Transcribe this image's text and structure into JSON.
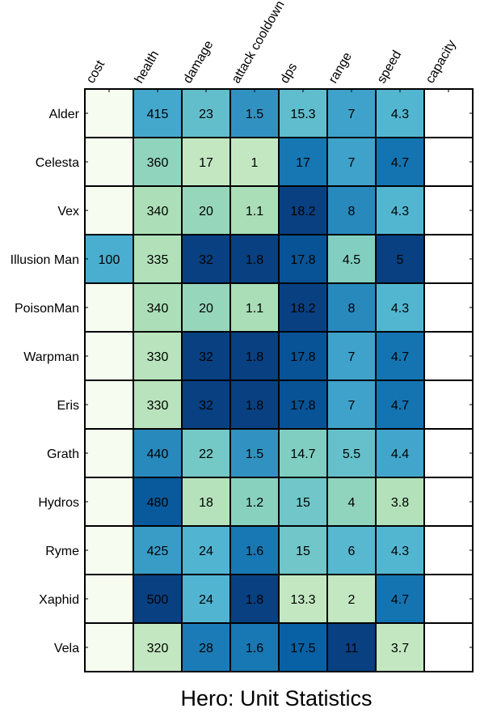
{
  "chart_data": {
    "type": "heatmap",
    "title": "Hero: Unit Statistics",
    "columns": [
      "cost",
      "health",
      "damage",
      "attack cooldown",
      "dps",
      "range",
      "speed",
      "capacity"
    ],
    "rows": [
      "Alder",
      "Celesta",
      "Vex",
      "Illusion Man",
      "PoisonMan",
      "Warpman",
      "Eris",
      "Grath",
      "Hydros",
      "Ryme",
      "Xaphid",
      "Vela"
    ],
    "values": [
      [
        null,
        415,
        23,
        1.5,
        15.3,
        7,
        4.3,
        null
      ],
      [
        null,
        360,
        17,
        1,
        17,
        7,
        4.7,
        null
      ],
      [
        null,
        340,
        20,
        1.1,
        18.2,
        8,
        4.3,
        null
      ],
      [
        100,
        335,
        32,
        1.8,
        17.8,
        4.5,
        5,
        null
      ],
      [
        null,
        340,
        20,
        1.1,
        18.2,
        8,
        4.3,
        null
      ],
      [
        null,
        330,
        32,
        1.8,
        17.8,
        7,
        4.7,
        null
      ],
      [
        null,
        330,
        32,
        1.8,
        17.8,
        7,
        4.7,
        null
      ],
      [
        null,
        440,
        22,
        1.5,
        14.7,
        5.5,
        4.4,
        null
      ],
      [
        null,
        480,
        18,
        1.2,
        15,
        4,
        3.8,
        null
      ],
      [
        null,
        425,
        24,
        1.6,
        15,
        6,
        4.3,
        null
      ],
      [
        null,
        500,
        24,
        1.8,
        13.3,
        2,
        4.7,
        null
      ],
      [
        null,
        320,
        28,
        1.6,
        17.5,
        11,
        3.7,
        null
      ]
    ],
    "colormap": [
      "#f7fcf0",
      "#e0f3db",
      "#ccebc5",
      "#a8ddb5",
      "#7bccc4",
      "#4eb3d3",
      "#2b8cbe",
      "#0868ac",
      "#084081"
    ],
    "empty_cell_color": "#f7fcf0",
    "empty_column_color": "#ffffff",
    "grid": true
  }
}
